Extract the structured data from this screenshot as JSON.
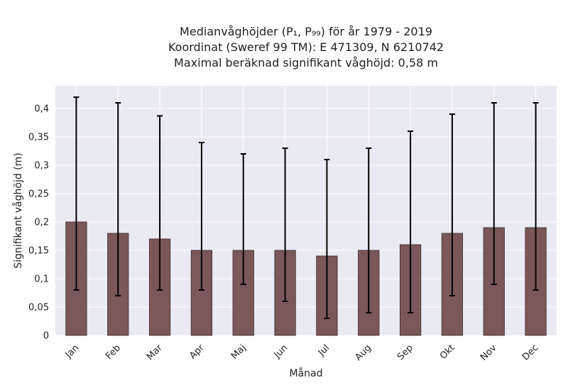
{
  "chart_data": {
    "type": "bar",
    "title_lines": [
      "Medianvåghöjder (P₁, P₉₉) för år 1979 - 2019",
      "Koordinat (Sweref 99 TM): E 471309, N 6210742",
      "Maximal beräknad signifikant våghöjd: 0,58 m"
    ],
    "xlabel": "Månad",
    "ylabel": "Signifikant våghöjd (m)",
    "categories": [
      "Jan",
      "Feb",
      "Mar",
      "Apr",
      "Maj",
      "Jun",
      "Jul",
      "Aug",
      "Sep",
      "Okt",
      "Nov",
      "Dec"
    ],
    "values": [
      0.2,
      0.18,
      0.17,
      0.15,
      0.15,
      0.15,
      0.14,
      0.15,
      0.16,
      0.18,
      0.19,
      0.19
    ],
    "p1": [
      0.08,
      0.07,
      0.08,
      0.08,
      0.09,
      0.06,
      0.03,
      0.04,
      0.04,
      0.07,
      0.09,
      0.08
    ],
    "p99": [
      0.42,
      0.41,
      0.387,
      0.34,
      0.32,
      0.33,
      0.31,
      0.33,
      0.36,
      0.39,
      0.41,
      0.41
    ],
    "ylim": [
      0,
      0.44
    ],
    "yticks": [
      0,
      0.05,
      0.1,
      0.15,
      0.2,
      0.25,
      0.3,
      0.35,
      0.4
    ],
    "ytick_labels": [
      "0",
      "0,05",
      "0,1",
      "0,15",
      "0,2",
      "0,25",
      "0,3",
      "0,35",
      "0,4"
    ],
    "grid": true,
    "colors": {
      "bar": "#7a5759",
      "bar_edge": "#3b2b2c",
      "error": "#000000",
      "plot_bg": "#eaeaf2",
      "grid": "#ffffff"
    }
  }
}
